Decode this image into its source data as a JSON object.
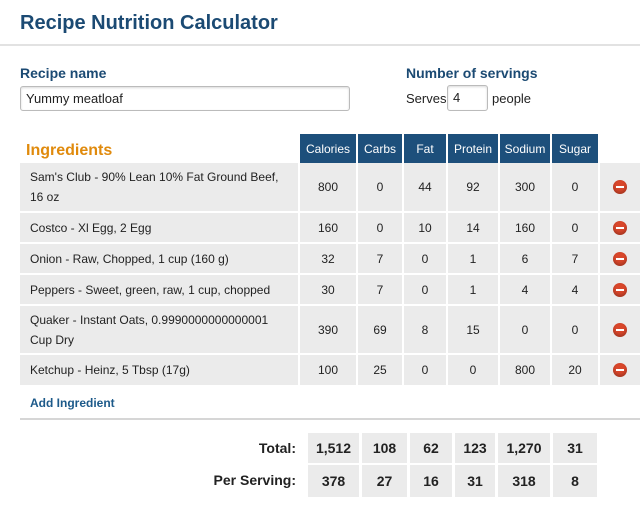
{
  "header": {
    "title": "Recipe Nutrition Calculator"
  },
  "recipe": {
    "label": "Recipe name",
    "value": "Yummy meatloaf"
  },
  "servings": {
    "label": "Number of servings",
    "prefix": "Serves",
    "value": "4",
    "suffix": "people"
  },
  "table": {
    "title": "Ingredients",
    "columns": [
      "Calories",
      "Carbs",
      "Fat",
      "Protein",
      "Sodium",
      "Sugar"
    ],
    "rows": [
      {
        "name": "Sam's Club - 90% Lean 10% Fat Ground Beef, 16 oz",
        "values": [
          800,
          0,
          44,
          92,
          300,
          0
        ]
      },
      {
        "name": "Costco - Xl Egg, 2 Egg",
        "values": [
          160,
          0,
          10,
          14,
          160,
          0
        ]
      },
      {
        "name": "Onion - Raw, Chopped, 1 cup (160 g)",
        "values": [
          32,
          7,
          0,
          1,
          6,
          7
        ]
      },
      {
        "name": "Peppers - Sweet, green, raw, 1 cup, chopped",
        "values": [
          30,
          7,
          0,
          1,
          4,
          4
        ]
      },
      {
        "name": "Quaker - Instant Oats, 0.9990000000000001 Cup Dry",
        "values": [
          390,
          69,
          8,
          15,
          0,
          0
        ]
      },
      {
        "name": "Ketchup - Heinz, 5 Tbsp (17g)",
        "values": [
          100,
          25,
          0,
          0,
          800,
          20
        ]
      }
    ]
  },
  "add_link": "Add Ingredient",
  "totals": [
    {
      "label": "Total:",
      "values": [
        "1,512",
        108,
        62,
        123,
        "1,270",
        31
      ]
    },
    {
      "label": "Per Serving:",
      "values": [
        378,
        27,
        16,
        31,
        318,
        8
      ]
    }
  ]
}
